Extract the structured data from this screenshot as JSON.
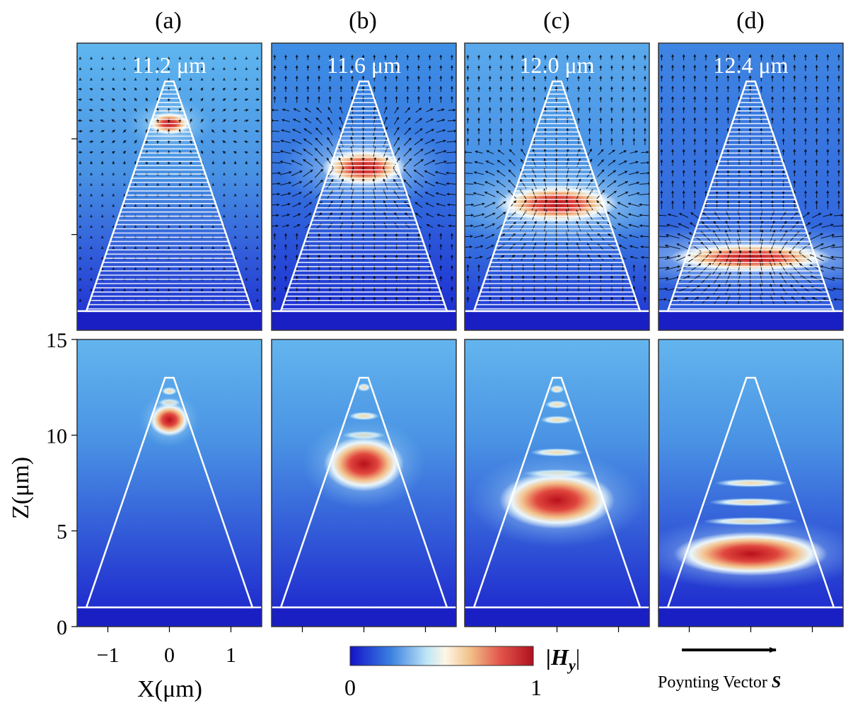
{
  "figure": {
    "columns": [
      {
        "id": "a",
        "label": "(a)",
        "wavelength": "11.2 μm",
        "peak_z": 10.8,
        "spot_w": 0.26,
        "spot_h": 0.75,
        "fringes": [
          12.3,
          11.7
        ]
      },
      {
        "id": "b",
        "label": "(b)",
        "wavelength": "11.6 μm",
        "peak_z": 8.5,
        "spot_w": 0.52,
        "spot_h": 1.25,
        "fringes": [
          12.5,
          11.0,
          10.0
        ]
      },
      {
        "id": "c",
        "label": "(c)",
        "wavelength": "12.0 μm",
        "peak_z": 6.6,
        "spot_w": 0.75,
        "spot_h": 1.3,
        "fringes": [
          12.4,
          11.6,
          10.8,
          9.1,
          8.0
        ]
      },
      {
        "id": "d",
        "label": "(d)",
        "wavelength": "12.4 μm",
        "peak_z": 3.8,
        "spot_w": 1.0,
        "spot_h": 1.0,
        "fringes": [
          7.5,
          6.5,
          5.5
        ]
      }
    ],
    "axes": {
      "z_label": "Z(μm)",
      "x_label": "X(μm)",
      "z_ticks": [
        "0",
        "5",
        "10",
        "15"
      ],
      "z_values": [
        0,
        5,
        10,
        15
      ],
      "x_ticks": [
        "−1",
        "0",
        "1"
      ],
      "x_values": [
        -1,
        0,
        1
      ],
      "z_range": [
        0,
        15
      ],
      "x_range": [
        -1.5,
        1.5
      ]
    },
    "structure": {
      "base_z": 1.0,
      "apex_z": 13.0,
      "base_half_width": 1.35,
      "apex_half_width": 0.07
    },
    "colorbar": {
      "label": "|H",
      "label_sub": "y",
      "label_end": "|",
      "min": "0",
      "max": "1"
    },
    "legend": {
      "arrow_label": "Poynting Vector",
      "arrow_symbol": "S"
    },
    "colors": {
      "low": "#1a1fd6",
      "mid_low": "#4d9be6",
      "mid": "#e8f4fa",
      "mid_high": "#f3c98f",
      "high": "#c4121f",
      "outline": "#ffffff",
      "frame": "#333333"
    }
  }
}
